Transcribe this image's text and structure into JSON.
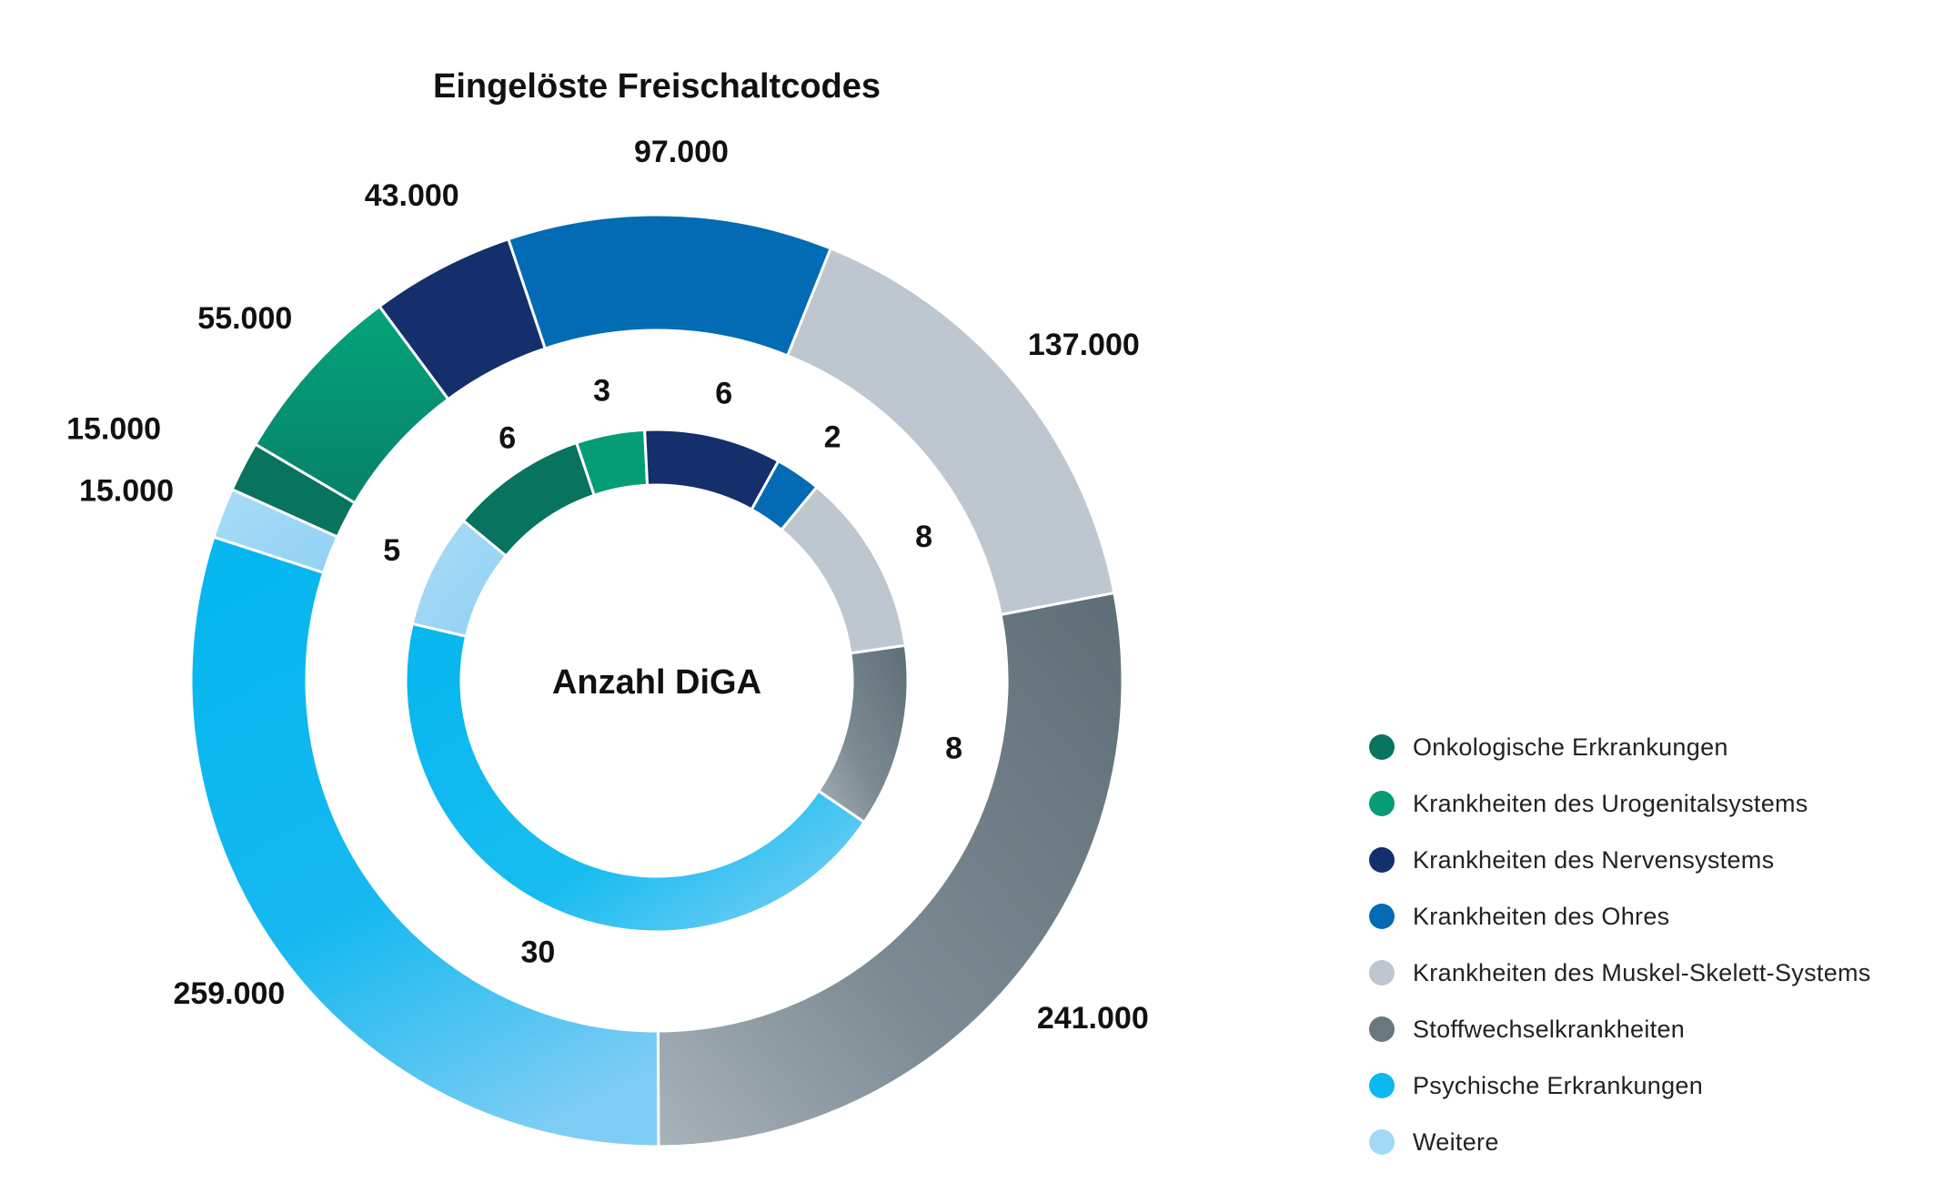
{
  "chart_data": {
    "type": "pie",
    "title": "Eingelöste Freischaltcodes",
    "center_label": "Anzahl DiGA",
    "categories": [
      "Onkologische Erkrankungen",
      "Krankheiten des Urogenitalsystems",
      "Krankheiten des Nervensystems",
      "Krankheiten des Ohres",
      "Krankheiten des Muskel-Skelett-Systems",
      "Stoffwechselkrankheiten",
      "Psychische Erkrankungen",
      "Weitere"
    ],
    "colors": [
      "#08735f",
      "#059d75",
      "#142f6b",
      "#036bb3",
      "#bec7cf",
      "#687780",
      "#0cb9ef",
      "#a2d9f6"
    ],
    "series": [
      {
        "name": "Eingelöste Freischaltcodes",
        "ring": "outer",
        "values": [
          15000,
          55000,
          43000,
          97000,
          137000,
          241000,
          259000,
          15000
        ],
        "labels": [
          "15.000",
          "55.000",
          "43.000",
          "97.000",
          "137.000",
          "241.000",
          "259.000",
          "15.000"
        ]
      },
      {
        "name": "Anzahl DiGA",
        "ring": "inner",
        "values": [
          6,
          3,
          6,
          2,
          8,
          8,
          30,
          5
        ],
        "labels": [
          "6",
          "3",
          "6",
          "2",
          "8",
          "8",
          "30",
          "5"
        ]
      }
    ],
    "legend_position": "bottom-right"
  }
}
